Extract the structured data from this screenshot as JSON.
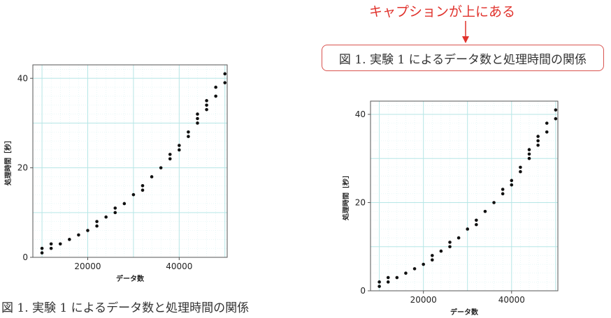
{
  "annotation": {
    "text": "キャプションが上にある",
    "color": "#e0322c"
  },
  "caption_text": "図 1. 実験 1 によるデータ数と処理時間の関係",
  "colors": {
    "grid_major": "#b6e6e6",
    "grid_minor": "#d9f2f2",
    "points": "#111111",
    "frame": "#555555",
    "caption_border": "#d9534f"
  },
  "chart_data": [
    {
      "type": "scatter",
      "xlabel": "データ数",
      "ylabel": "処理時間［秒］",
      "xlim": [
        8000,
        50500
      ],
      "ylim": [
        0,
        43
      ],
      "xticks": [
        20000,
        40000
      ],
      "yticks": [
        0,
        20,
        40
      ],
      "grid": true,
      "points": [
        {
          "x": 10000,
          "y": 1
        },
        {
          "x": 10000,
          "y": 2
        },
        {
          "x": 12000,
          "y": 2
        },
        {
          "x": 12000,
          "y": 3
        },
        {
          "x": 14000,
          "y": 3
        },
        {
          "x": 16000,
          "y": 4
        },
        {
          "x": 18000,
          "y": 5
        },
        {
          "x": 20000,
          "y": 6
        },
        {
          "x": 22000,
          "y": 7
        },
        {
          "x": 22000,
          "y": 8
        },
        {
          "x": 24000,
          "y": 9
        },
        {
          "x": 26000,
          "y": 10
        },
        {
          "x": 26000,
          "y": 11
        },
        {
          "x": 28000,
          "y": 12
        },
        {
          "x": 30000,
          "y": 14
        },
        {
          "x": 32000,
          "y": 15
        },
        {
          "x": 32000,
          "y": 16
        },
        {
          "x": 34000,
          "y": 18
        },
        {
          "x": 36000,
          "y": 20
        },
        {
          "x": 38000,
          "y": 22
        },
        {
          "x": 38000,
          "y": 23
        },
        {
          "x": 40000,
          "y": 24
        },
        {
          "x": 40000,
          "y": 25
        },
        {
          "x": 42000,
          "y": 27
        },
        {
          "x": 42000,
          "y": 28
        },
        {
          "x": 44000,
          "y": 30
        },
        {
          "x": 44000,
          "y": 31
        },
        {
          "x": 44000,
          "y": 32
        },
        {
          "x": 46000,
          "y": 33
        },
        {
          "x": 46000,
          "y": 34
        },
        {
          "x": 46000,
          "y": 35
        },
        {
          "x": 48000,
          "y": 36
        },
        {
          "x": 48000,
          "y": 38
        },
        {
          "x": 50000,
          "y": 39
        },
        {
          "x": 50000,
          "y": 41
        }
      ]
    },
    {
      "type": "scatter",
      "xlabel": "データ数",
      "ylabel": "処理時間［秒］",
      "xlim": [
        8000,
        50500
      ],
      "ylim": [
        0,
        43
      ],
      "xticks": [
        20000,
        40000
      ],
      "yticks": [
        0,
        20,
        40
      ],
      "grid": true,
      "points": [
        {
          "x": 10000,
          "y": 1
        },
        {
          "x": 10000,
          "y": 2
        },
        {
          "x": 12000,
          "y": 2
        },
        {
          "x": 12000,
          "y": 3
        },
        {
          "x": 14000,
          "y": 3
        },
        {
          "x": 16000,
          "y": 4
        },
        {
          "x": 18000,
          "y": 5
        },
        {
          "x": 20000,
          "y": 6
        },
        {
          "x": 22000,
          "y": 7
        },
        {
          "x": 22000,
          "y": 8
        },
        {
          "x": 24000,
          "y": 9
        },
        {
          "x": 26000,
          "y": 10
        },
        {
          "x": 26000,
          "y": 11
        },
        {
          "x": 28000,
          "y": 12
        },
        {
          "x": 30000,
          "y": 14
        },
        {
          "x": 32000,
          "y": 15
        },
        {
          "x": 32000,
          "y": 16
        },
        {
          "x": 34000,
          "y": 18
        },
        {
          "x": 36000,
          "y": 20
        },
        {
          "x": 38000,
          "y": 22
        },
        {
          "x": 38000,
          "y": 23
        },
        {
          "x": 40000,
          "y": 24
        },
        {
          "x": 40000,
          "y": 25
        },
        {
          "x": 42000,
          "y": 27
        },
        {
          "x": 42000,
          "y": 28
        },
        {
          "x": 44000,
          "y": 30
        },
        {
          "x": 44000,
          "y": 31
        },
        {
          "x": 44000,
          "y": 32
        },
        {
          "x": 46000,
          "y": 33
        },
        {
          "x": 46000,
          "y": 34
        },
        {
          "x": 46000,
          "y": 35
        },
        {
          "x": 48000,
          "y": 36
        },
        {
          "x": 48000,
          "y": 38
        },
        {
          "x": 50000,
          "y": 39
        },
        {
          "x": 50000,
          "y": 41
        }
      ]
    }
  ]
}
